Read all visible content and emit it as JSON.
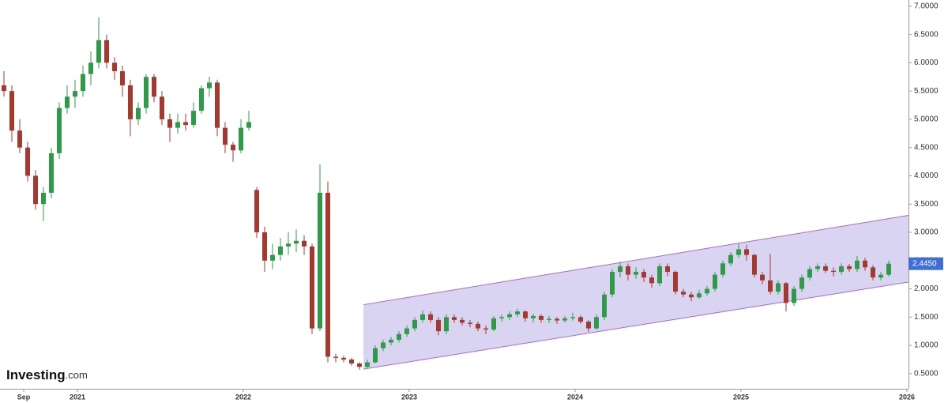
{
  "logo": [
    "Investing",
    ".com"
  ],
  "chart_data": {
    "type": "candlestick",
    "candle_format": [
      "open",
      "high",
      "low",
      "close"
    ],
    "candles": [
      [
        5.6,
        5.85,
        5.4,
        5.5
      ],
      [
        5.5,
        5.6,
        4.6,
        4.8
      ],
      [
        4.8,
        5.0,
        4.4,
        4.5
      ],
      [
        4.5,
        4.6,
        3.9,
        4.0
      ],
      [
        4.0,
        4.1,
        3.4,
        3.5
      ],
      [
        3.5,
        3.8,
        3.2,
        3.7
      ],
      [
        3.7,
        4.5,
        3.6,
        4.4
      ],
      [
        4.4,
        5.3,
        4.3,
        5.2
      ],
      [
        5.2,
        5.6,
        5.1,
        5.4
      ],
      [
        5.4,
        5.7,
        5.2,
        5.5
      ],
      [
        5.5,
        5.95,
        5.4,
        5.8
      ],
      [
        5.8,
        6.2,
        5.6,
        6.0
      ],
      [
        6.0,
        6.8,
        5.9,
        6.4
      ],
      [
        6.4,
        6.5,
        5.9,
        6.0
      ],
      [
        6.0,
        6.1,
        5.7,
        5.85
      ],
      [
        5.85,
        5.95,
        5.4,
        5.6
      ],
      [
        5.6,
        5.7,
        4.7,
        5.0
      ],
      [
        5.0,
        5.3,
        4.9,
        5.2
      ],
      [
        5.2,
        5.8,
        5.1,
        5.75
      ],
      [
        5.75,
        5.8,
        5.3,
        5.4
      ],
      [
        5.4,
        5.5,
        4.9,
        5.0
      ],
      [
        5.0,
        5.1,
        4.6,
        4.85
      ],
      [
        4.85,
        5.1,
        4.75,
        4.95
      ],
      [
        4.95,
        5.1,
        4.8,
        4.9
      ],
      [
        4.9,
        5.3,
        4.85,
        5.15
      ],
      [
        5.15,
        5.6,
        5.1,
        5.55
      ],
      [
        5.55,
        5.75,
        5.4,
        5.65
      ],
      [
        5.65,
        5.7,
        4.7,
        4.85
      ],
      [
        4.85,
        4.95,
        4.4,
        4.55
      ],
      [
        4.55,
        4.6,
        4.25,
        4.45
      ],
      [
        4.45,
        5.0,
        4.4,
        4.85
      ],
      [
        4.85,
        5.15,
        4.8,
        4.95
      ],
      [
        3.75,
        3.8,
        2.9,
        3.0
      ],
      [
        3.0,
        3.1,
        2.3,
        2.5
      ],
      [
        2.5,
        2.8,
        2.35,
        2.6
      ],
      [
        2.6,
        2.9,
        2.5,
        2.75
      ],
      [
        2.75,
        3.0,
        2.6,
        2.8
      ],
      [
        2.8,
        3.05,
        2.65,
        2.85
      ],
      [
        2.85,
        2.95,
        2.6,
        2.75
      ],
      [
        2.75,
        2.8,
        1.2,
        1.3
      ],
      [
        1.3,
        4.2,
        1.25,
        3.7
      ],
      [
        3.7,
        3.9,
        0.7,
        0.8
      ],
      [
        0.8,
        0.85,
        0.7,
        0.78
      ],
      [
        0.78,
        0.82,
        0.7,
        0.75
      ],
      [
        0.75,
        0.78,
        0.64,
        0.68
      ],
      [
        0.68,
        0.7,
        0.57,
        0.62
      ],
      [
        0.62,
        0.75,
        0.6,
        0.7
      ],
      [
        0.7,
        1.0,
        0.68,
        0.95
      ],
      [
        0.95,
        1.1,
        0.9,
        1.05
      ],
      [
        1.05,
        1.15,
        1.0,
        1.1
      ],
      [
        1.1,
        1.25,
        1.05,
        1.2
      ],
      [
        1.2,
        1.35,
        1.15,
        1.3
      ],
      [
        1.3,
        1.5,
        1.25,
        1.45
      ],
      [
        1.45,
        1.62,
        1.4,
        1.55
      ],
      [
        1.55,
        1.6,
        1.4,
        1.45
      ],
      [
        1.45,
        1.5,
        1.18,
        1.25
      ],
      [
        1.25,
        1.55,
        1.2,
        1.5
      ],
      [
        1.5,
        1.55,
        1.4,
        1.45
      ],
      [
        1.45,
        1.5,
        1.35,
        1.4
      ],
      [
        1.4,
        1.45,
        1.32,
        1.38
      ],
      [
        1.38,
        1.42,
        1.25,
        1.3
      ],
      [
        1.3,
        1.35,
        1.2,
        1.28
      ],
      [
        1.28,
        1.52,
        1.25,
        1.48
      ],
      [
        1.48,
        1.55,
        1.42,
        1.5
      ],
      [
        1.5,
        1.6,
        1.45,
        1.55
      ],
      [
        1.55,
        1.65,
        1.5,
        1.6
      ],
      [
        1.6,
        1.62,
        1.42,
        1.48
      ],
      [
        1.48,
        1.56,
        1.4,
        1.52
      ],
      [
        1.52,
        1.55,
        1.4,
        1.45
      ],
      [
        1.45,
        1.52,
        1.4,
        1.47
      ],
      [
        1.47,
        1.5,
        1.38,
        1.44
      ],
      [
        1.44,
        1.52,
        1.4,
        1.48
      ],
      [
        1.48,
        1.58,
        1.44,
        1.5
      ],
      [
        1.5,
        1.53,
        1.38,
        1.42
      ],
      [
        1.42,
        1.45,
        1.24,
        1.3
      ],
      [
        1.3,
        1.55,
        1.27,
        1.5
      ],
      [
        1.5,
        1.95,
        1.45,
        1.9
      ],
      [
        1.9,
        2.35,
        1.85,
        2.3
      ],
      [
        2.3,
        2.48,
        2.2,
        2.4
      ],
      [
        2.4,
        2.45,
        2.15,
        2.25
      ],
      [
        2.25,
        2.38,
        2.18,
        2.3
      ],
      [
        2.3,
        2.35,
        2.12,
        2.2
      ],
      [
        2.2,
        2.25,
        2.02,
        2.1
      ],
      [
        2.1,
        2.45,
        2.05,
        2.4
      ],
      [
        2.4,
        2.45,
        2.22,
        2.3
      ],
      [
        2.3,
        2.32,
        1.9,
        1.95
      ],
      [
        1.95,
        2.0,
        1.85,
        1.9
      ],
      [
        1.9,
        1.95,
        1.78,
        1.85
      ],
      [
        1.85,
        1.98,
        1.82,
        1.92
      ],
      [
        1.92,
        2.05,
        1.88,
        2.0
      ],
      [
        2.0,
        2.3,
        1.95,
        2.25
      ],
      [
        2.25,
        2.5,
        2.2,
        2.45
      ],
      [
        2.45,
        2.65,
        2.4,
        2.6
      ],
      [
        2.6,
        2.8,
        2.55,
        2.7
      ],
      [
        2.7,
        2.78,
        2.5,
        2.6
      ],
      [
        2.6,
        2.62,
        2.2,
        2.25
      ],
      [
        2.25,
        2.3,
        2.08,
        2.15
      ],
      [
        2.15,
        2.62,
        1.9,
        1.95
      ],
      [
        1.95,
        2.15,
        1.9,
        2.1
      ],
      [
        2.1,
        2.12,
        1.6,
        1.75
      ],
      [
        1.75,
        2.05,
        1.7,
        2.0
      ],
      [
        2.0,
        2.25,
        1.95,
        2.2
      ],
      [
        2.2,
        2.4,
        2.15,
        2.35
      ],
      [
        2.35,
        2.45,
        2.3,
        2.4
      ],
      [
        2.4,
        2.45,
        2.28,
        2.32
      ],
      [
        2.32,
        2.38,
        2.22,
        2.3
      ],
      [
        2.3,
        2.45,
        2.25,
        2.4
      ],
      [
        2.4,
        2.44,
        2.3,
        2.35
      ],
      [
        2.35,
        2.58,
        2.3,
        2.5
      ],
      [
        2.5,
        2.55,
        2.32,
        2.38
      ],
      [
        2.38,
        2.42,
        2.15,
        2.2
      ],
      [
        2.2,
        2.3,
        2.15,
        2.25
      ],
      [
        2.25,
        2.5,
        2.22,
        2.445
      ]
    ],
    "up_color": "#2f9a48",
    "down_color": "#a3392f",
    "xlim": [
      -0.5,
      114.5
    ],
    "ylim": [
      0.26,
      7.11
    ],
    "xticks": [
      {
        "value": 2.5,
        "label": "Sep"
      },
      {
        "value": 9.3,
        "label": "2021"
      },
      {
        "value": 30.3,
        "label": "2022"
      },
      {
        "value": 51.3,
        "label": "2023"
      },
      {
        "value": 72.3,
        "label": "2024"
      },
      {
        "value": 93.3,
        "label": "2025"
      },
      {
        "value": 114.3,
        "label": "2026"
      }
    ],
    "yticks": [
      {
        "value": 0.5,
        "label": "0.5000"
      },
      {
        "value": 1.0,
        "label": "1.0000"
      },
      {
        "value": 1.5,
        "label": "1.5000"
      },
      {
        "value": 2.0,
        "label": "2.0000"
      },
      {
        "value": 2.5,
        "label": "2.5000"
      },
      {
        "value": 3.0,
        "label": "3.0000"
      },
      {
        "value": 3.5,
        "label": "3.5000"
      },
      {
        "value": 4.0,
        "label": "4.0000"
      },
      {
        "value": 4.5,
        "label": "4.5000"
      },
      {
        "value": 5.0,
        "label": "5.0000"
      },
      {
        "value": 5.5,
        "label": "5.5000"
      },
      {
        "value": 6.0,
        "label": "6.0000"
      },
      {
        "value": 6.5,
        "label": "6.5000"
      },
      {
        "value": 7.0,
        "label": "7.0000"
      }
    ],
    "channel": {
      "x": [
        45.5,
        114.5
      ],
      "upper": [
        1.72,
        3.3
      ],
      "lower": [
        0.58,
        2.12
      ],
      "fill": "#d9d4f1",
      "stroke": "#a56ccc"
    },
    "last_price": {
      "value": 2.445,
      "label": "2.4450",
      "color": "#3f6fd6"
    }
  }
}
